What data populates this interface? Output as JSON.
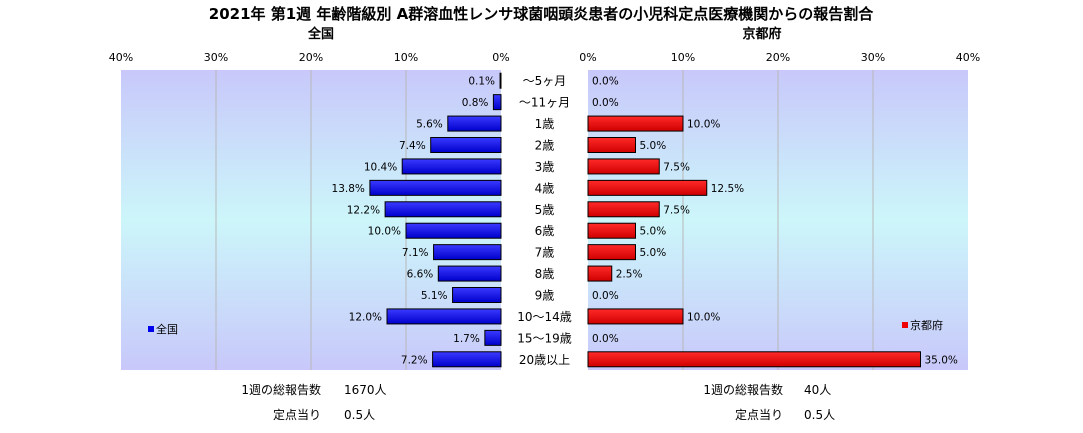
{
  "title": "2021年 第1週 年齢階級別 A群溶血性レンサ球菌咽頭炎患者の小児科定点医療機関からの報告割合",
  "colors": {
    "left_bar": "#0000ee",
    "right_bar": "#ee0000",
    "grid": "#b8b8b8"
  },
  "chart_data": [
    {
      "type": "bar",
      "orientation": "horizontal",
      "direction": "leftward",
      "title": "全国",
      "xlim": [
        0,
        40
      ],
      "xticks": [
        "40%",
        "30%",
        "20%",
        "10%",
        "0%"
      ],
      "categories": [
        "〜5ヶ月",
        "〜11ヶ月",
        "1歳",
        "2歳",
        "3歳",
        "4歳",
        "5歳",
        "6歳",
        "7歳",
        "8歳",
        "9歳",
        "10〜14歳",
        "15〜19歳",
        "20歳以上"
      ],
      "series": [
        {
          "name": "全国",
          "values": [
            0.1,
            0.8,
            5.6,
            7.4,
            10.4,
            13.8,
            12.2,
            10.0,
            7.1,
            6.6,
            5.1,
            12.0,
            1.7,
            7.2
          ],
          "labels": [
            "0.1%",
            "0.8%",
            "5.6%",
            "7.4%",
            "10.4%",
            "13.8%",
            "12.2%",
            "10.0%",
            "7.1%",
            "6.6%",
            "5.1%",
            "12.0%",
            "1.7%",
            "7.2%"
          ]
        }
      ],
      "legend": {
        "position": "bottom-left",
        "label": "全国"
      },
      "grid": true,
      "stats": [
        {
          "label": "1週の総報告数",
          "value": "1670人"
        },
        {
          "label": "定点当り",
          "value": "0.5人"
        }
      ]
    },
    {
      "type": "bar",
      "orientation": "horizontal",
      "direction": "rightward",
      "title": "京都府",
      "xlim": [
        0,
        40
      ],
      "xticks": [
        "0%",
        "10%",
        "20%",
        "30%",
        "40%"
      ],
      "categories": [
        "〜5ヶ月",
        "〜11ヶ月",
        "1歳",
        "2歳",
        "3歳",
        "4歳",
        "5歳",
        "6歳",
        "7歳",
        "8歳",
        "9歳",
        "10〜14歳",
        "15〜19歳",
        "20歳以上"
      ],
      "series": [
        {
          "name": "京都府",
          "values": [
            0.0,
            0.0,
            10.0,
            5.0,
            7.5,
            12.5,
            7.5,
            5.0,
            5.0,
            2.5,
            0.0,
            10.0,
            0.0,
            35.0
          ],
          "labels": [
            "0.0%",
            "0.0%",
            "10.0%",
            "5.0%",
            "7.5%",
            "12.5%",
            "7.5%",
            "5.0%",
            "5.0%",
            "2.5%",
            "0.0%",
            "10.0%",
            "0.0%",
            "35.0%"
          ]
        }
      ],
      "legend": {
        "position": "bottom-right",
        "label": "京都府"
      },
      "grid": true,
      "stats": [
        {
          "label": "1週の総報告数",
          "value": "40人"
        },
        {
          "label": "定点当り",
          "value": "0.5人"
        }
      ]
    }
  ]
}
